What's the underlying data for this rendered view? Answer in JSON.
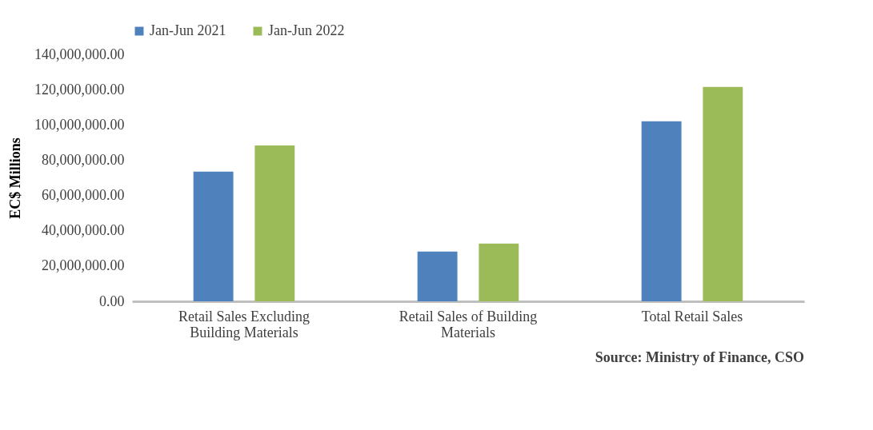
{
  "chart_data": {
    "type": "bar",
    "ylabel": "EC$ Millions",
    "categories": [
      "Retail Sales Excluding Building Materials",
      "Retail Sales of Building Materials",
      "Total Retail Sales"
    ],
    "series": [
      {
        "name": "Jan-Jun 2021",
        "color": "#4f81bd",
        "values": [
          73500000,
          28200000,
          102000000
        ]
      },
      {
        "name": "Jan-Jun 2022",
        "color": "#9bbb59",
        "values": [
          88300000,
          32700000,
          121500000
        ]
      }
    ],
    "ylim": [
      0,
      140000000
    ],
    "yticks": [
      {
        "value": 0,
        "label": "0.00"
      },
      {
        "value": 20000000,
        "label": "20,000,000.00"
      },
      {
        "value": 40000000,
        "label": "40,000,000.00"
      },
      {
        "value": 60000000,
        "label": "60,000,000.00"
      },
      {
        "value": 80000000,
        "label": "80,000,000.00"
      },
      {
        "value": 100000000,
        "label": "100,000,000.00"
      },
      {
        "value": 120000000,
        "label": "120,000,000.00"
      },
      {
        "value": 140000000,
        "label": "140,000,000.00"
      }
    ],
    "grid": false,
    "legend": "top",
    "annotations": [
      "Source: Ministry of Finance, CSO"
    ]
  }
}
